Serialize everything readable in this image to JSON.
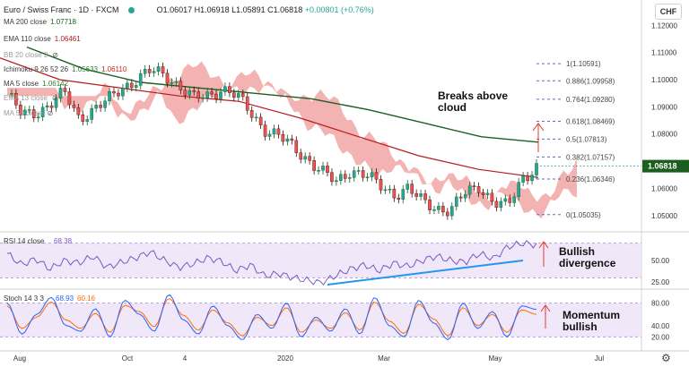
{
  "header": {
    "symbol": "Euro / Swiss Franc · 1D · FXCM",
    "ohlc": "O1.06017 H1.06918 L1.05891 C1.06818",
    "change": "+0.00801 (+0.76%)",
    "currency": "CHF"
  },
  "indicators": [
    {
      "label": "MA 200 close",
      "value": "1.07718",
      "color": "#1b5e20",
      "faded": false
    },
    {
      "label": "EMA 110 close",
      "value": "1.06461",
      "color": "#b71c1c",
      "faded": false
    },
    {
      "label": "BB 20 close 2",
      "value": "",
      "color": "#9a9a9a",
      "faded": true
    },
    {
      "label": "Ichimoku 9 26 52 26",
      "value": "1.05633",
      "value2": "1.06110",
      "color": "#2e7d32",
      "color2": "#c62828",
      "faded": false
    },
    {
      "label": "MA 5 close",
      "value": "1.06142",
      "color": "#2e7d32",
      "faded": false
    },
    {
      "label": "EMA 13 close",
      "value": "",
      "color": "#9a9a9a",
      "faded": true
    },
    {
      "label": "MA 50 close",
      "value": "",
      "color": "#9a9a9a",
      "faded": true
    }
  ],
  "icons": {
    "visibility": "eye-slash-icon",
    "settings": "gear-icon",
    "status": "market-open-dot"
  },
  "colors": {
    "up": "#26a69a",
    "down": "#ef5350",
    "cloud": "#ef9a9a",
    "ma200": "#1b5e20",
    "ema110": "#b71c1c",
    "fib": "#5c6bc0",
    "rsi": "#7e57c2",
    "stoch_k": "#2962ff",
    "stoch_d": "#ff6d00",
    "trend": "#2196f3",
    "arrow": "#e53935"
  },
  "chart_data": [
    {
      "type": "candlestick",
      "ylim": [
        1.045,
        1.128
      ],
      "y_ticks": [
        "1.12000",
        "1.11000",
        "1.10000",
        "1.09000",
        "1.08000",
        "1.06000",
        "1.05000"
      ],
      "last_price": "1.06818",
      "x_labels": [
        "Aug",
        "Oct",
        "4",
        "2020",
        "Mar",
        "May",
        "Jul"
      ],
      "close_path": [
        1.095,
        1.087,
        1.088,
        1.091,
        1.095,
        1.086,
        1.089,
        1.092,
        1.097,
        1.1,
        1.103,
        1.102,
        1.098,
        1.093,
        1.094,
        1.097,
        1.094,
        1.088,
        1.082,
        1.079,
        1.075,
        1.071,
        1.066,
        1.062,
        1.067,
        1.065,
        1.061,
        1.058,
        1.06,
        1.055,
        1.053,
        1.052,
        1.058,
        1.061,
        1.055,
        1.053,
        1.064,
        1.068
      ],
      "ma200": [
        1.112,
        1.104,
        1.099,
        1.097,
        1.095,
        1.093,
        1.089,
        1.084,
        1.079,
        1.077
      ],
      "ema110": [
        1.108,
        1.1,
        1.097,
        1.094,
        1.092,
        1.086,
        1.079,
        1.072,
        1.067,
        1.064
      ],
      "fib_levels": [
        {
          "label": "1(1.10591)",
          "value": 1.10591
        },
        {
          "label": "0.886(1.09958)",
          "value": 1.09958
        },
        {
          "label": "0.764(1.09280)",
          "value": 1.0928
        },
        {
          "label": "0.618(1.08469)",
          "value": 1.08469
        },
        {
          "label": "0.5(1.07813)",
          "value": 1.07813
        },
        {
          "label": "0.382(1.07157)",
          "value": 1.07157
        },
        {
          "label": "0.236(1.06346)",
          "value": 1.06346
        },
        {
          "label": "0(1.05035)",
          "value": 1.05035
        }
      ],
      "annotation": "Breaks above cloud"
    },
    {
      "type": "line",
      "title": "RSI 14 close",
      "value": "68.38",
      "ylim": [
        20,
        80
      ],
      "y_ticks": [
        "50.00",
        "25.00"
      ],
      "bands": [
        30,
        70
      ],
      "values": [
        58,
        45,
        52,
        40,
        50,
        47,
        55,
        42,
        48,
        53,
        60,
        50,
        42,
        46,
        53,
        49,
        38,
        45,
        32,
        35,
        30,
        27,
        24,
        33,
        40,
        45,
        38,
        47,
        43,
        50,
        55,
        50,
        48,
        58,
        52,
        66,
        70,
        68
      ],
      "annotation": "Bullish divergence"
    },
    {
      "type": "line",
      "title": "Stoch 14 3 3",
      "value_k": "68.93",
      "value_d": "60.16",
      "ylim": [
        0,
        100
      ],
      "y_ticks": [
        "80.00",
        "40.00",
        "20.00"
      ],
      "bands": [
        20,
        80
      ],
      "k": [
        80,
        25,
        60,
        90,
        40,
        30,
        70,
        20,
        85,
        60,
        30,
        95,
        50,
        25,
        75,
        40,
        15,
        60,
        35,
        80,
        20,
        55,
        30,
        70,
        25,
        90,
        40,
        20,
        85,
        45,
        15,
        80,
        35,
        65,
        20,
        75,
        69
      ],
      "d": [
        75,
        35,
        55,
        82,
        50,
        35,
        62,
        28,
        76,
        65,
        38,
        88,
        58,
        32,
        68,
        45,
        22,
        55,
        40,
        72,
        28,
        50,
        35,
        63,
        32,
        82,
        48,
        26,
        78,
        52,
        22,
        72,
        40,
        60,
        28,
        68,
        60
      ],
      "annotation": "Momentum bullish"
    }
  ]
}
